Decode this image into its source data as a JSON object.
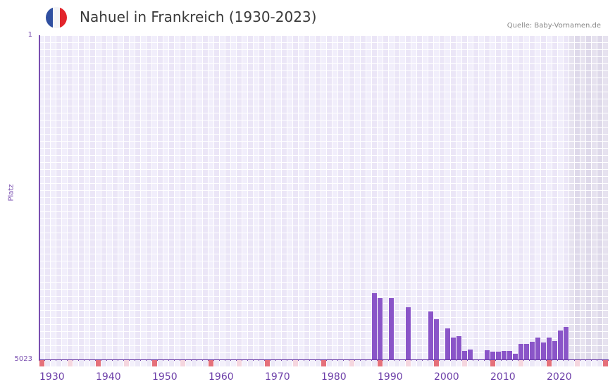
{
  "header": {
    "title": "Nahuel in Frankreich (1930-2023)",
    "source": "Quelle: Baby-Vornamen.de",
    "flag_icon": "france-flag-icon",
    "flag_colors": [
      "#2f4fa0",
      "#f4f4f6",
      "#e2252c"
    ]
  },
  "colors": {
    "bar": "#8a55c8",
    "axis": "#6c3ea8",
    "grid_a": "#f1eefb",
    "grid_b": "#ebe6f7",
    "future_a": "#e6e2ef",
    "future_b": "#ded9ea",
    "decade_marker": "#e5707a",
    "half_decade_marker": "#f5d6df",
    "plain_marker_a": "#f3f0fb",
    "plain_marker_b": "#ece8f7"
  },
  "chart_data": {
    "type": "bar",
    "title": "Nahuel in Frankreich (1930-2023)",
    "xlabel": "",
    "ylabel": "Platz",
    "y_inverted": true,
    "ylim": [
      1,
      5023
    ],
    "xlim": [
      1930,
      2030
    ],
    "x_ticks": [
      1930,
      1940,
      1950,
      1960,
      1970,
      1980,
      1990,
      2000,
      2010,
      2020
    ],
    "y_ticks": [
      1,
      5023
    ],
    "future_shaded_from": 2024,
    "grid": true,
    "legend": null,
    "source": "Quelle: Baby-Vornamen.de",
    "points": [
      {
        "year": 1989,
        "rank": 3996
      },
      {
        "year": 1990,
        "rank": 4072
      },
      {
        "year": 1992,
        "rank": 4072
      },
      {
        "year": 1995,
        "rank": 4214
      },
      {
        "year": 1999,
        "rank": 4280
      },
      {
        "year": 2000,
        "rank": 4400
      },
      {
        "year": 2002,
        "rank": 4542
      },
      {
        "year": 2003,
        "rank": 4684
      },
      {
        "year": 2004,
        "rank": 4662
      },
      {
        "year": 2005,
        "rank": 4891
      },
      {
        "year": 2006,
        "rank": 4869
      },
      {
        "year": 2009,
        "rank": 4880
      },
      {
        "year": 2010,
        "rank": 4902
      },
      {
        "year": 2011,
        "rank": 4902
      },
      {
        "year": 2012,
        "rank": 4891
      },
      {
        "year": 2013,
        "rank": 4891
      },
      {
        "year": 2014,
        "rank": 4935
      },
      {
        "year": 2015,
        "rank": 4782
      },
      {
        "year": 2016,
        "rank": 4782
      },
      {
        "year": 2017,
        "rank": 4749
      },
      {
        "year": 2018,
        "rank": 4684
      },
      {
        "year": 2019,
        "rank": 4760
      },
      {
        "year": 2020,
        "rank": 4684
      },
      {
        "year": 2021,
        "rank": 4738
      },
      {
        "year": 2022,
        "rank": 4575
      },
      {
        "year": 2023,
        "rank": 4520
      }
    ]
  }
}
